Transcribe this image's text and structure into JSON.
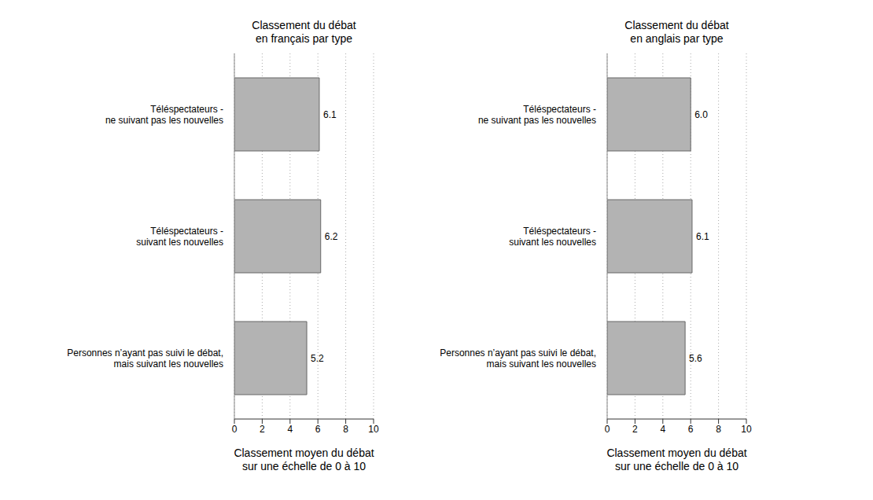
{
  "chart_data": [
    {
      "type": "bar",
      "orientation": "horizontal",
      "title": "Classement du débat\nen français par type",
      "categories": [
        "Téléspectateurs -\nne suivant pas les nouvelles",
        "Téléspectateurs -\nsuivant les nouvelles",
        "Personnes n’ayant pas suivi le débat,\nmais suivant les nouvelles"
      ],
      "values": [
        6.1,
        6.2,
        5.2
      ],
      "value_labels": [
        "6.1",
        "6.2",
        "5.2"
      ],
      "data_labels": true,
      "color": "#b3b3b3",
      "xlim": [
        0,
        10
      ],
      "xticks": [
        0,
        2,
        4,
        6,
        8,
        10
      ],
      "grid": true,
      "x_label": "Classement moyen du débat\nsur une échelle de 0 à 10"
    },
    {
      "type": "bar",
      "orientation": "horizontal",
      "title": "Classement du débat\nen anglais par type",
      "categories": [
        "Téléspectateurs -\nne suivant pas les nouvelles",
        "Téléspectateurs -\nsuivant les nouvelles",
        "Personnes n’ayant pas suivi le débat,\nmais suivant les nouvelles"
      ],
      "values": [
        6.0,
        6.1,
        5.6
      ],
      "value_labels": [
        "6.0",
        "6.1",
        "5.6"
      ],
      "data_labels": true,
      "color": "#b3b3b3",
      "xlim": [
        0,
        10
      ],
      "xticks": [
        0,
        2,
        4,
        6,
        8,
        10
      ],
      "grid": true,
      "x_label": "Classement moyen du débat\nsur une échelle de 0 à 10"
    }
  ]
}
